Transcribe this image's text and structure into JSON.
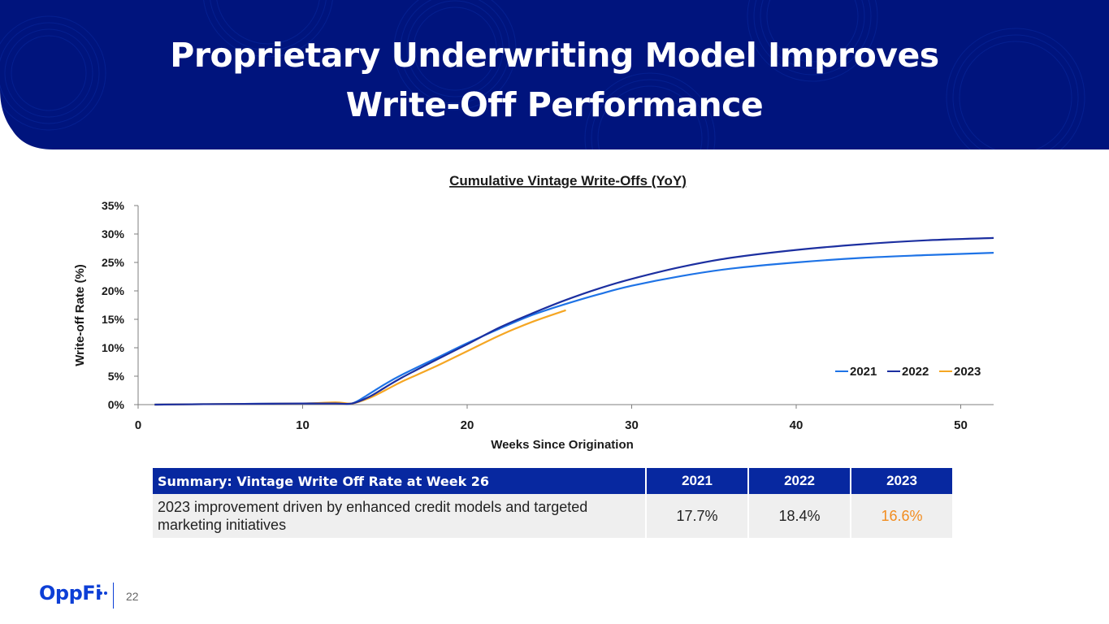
{
  "title": {
    "line1": "Proprietary Underwriting Model Improves",
    "line2": "Write-Off Performance"
  },
  "colors": {
    "banner": "#00147d",
    "series_2021": "#1e73e6",
    "series_2022": "#1c2fa0",
    "series_2023": "#f5a623",
    "table_header": "#0728a0",
    "highlight": "#f28c1e"
  },
  "chart_data": {
    "type": "line",
    "title": "Cumulative Vintage Write-Offs (YoY)",
    "xlabel": "Weeks Since Origination",
    "ylabel": "Write-off Rate (%)",
    "xlim": [
      0,
      52
    ],
    "ylim": [
      0,
      35
    ],
    "xticks": [
      0,
      10,
      20,
      30,
      40,
      50
    ],
    "yticks": [
      0,
      5,
      10,
      15,
      20,
      25,
      30,
      35
    ],
    "ytick_labels": [
      "0%",
      "5%",
      "10%",
      "15%",
      "20%",
      "25%",
      "30%",
      "35%"
    ],
    "legend_position": "bottom-right",
    "series": [
      {
        "name": "2021",
        "color": "#1e73e6",
        "x": [
          1,
          5,
          10,
          12,
          13,
          14,
          15,
          16,
          18,
          20,
          22,
          24,
          26,
          28,
          30,
          33,
          36,
          40,
          44,
          48,
          52
        ],
        "values": [
          0,
          0.1,
          0.2,
          0.3,
          0.2,
          1.8,
          3.6,
          5.2,
          8.0,
          10.8,
          13.4,
          15.8,
          17.7,
          19.4,
          20.9,
          22.6,
          23.9,
          25.0,
          25.8,
          26.3,
          26.7
        ]
      },
      {
        "name": "2022",
        "color": "#1c2fa0",
        "x": [
          1,
          5,
          10,
          12,
          13,
          14,
          15,
          16,
          18,
          20,
          22,
          24,
          26,
          28,
          30,
          33,
          36,
          40,
          44,
          48,
          52
        ],
        "values": [
          0,
          0.1,
          0.2,
          0.2,
          0.2,
          1.3,
          3.0,
          4.7,
          7.7,
          10.6,
          13.6,
          16.1,
          18.4,
          20.4,
          22.1,
          24.2,
          25.8,
          27.2,
          28.2,
          28.9,
          29.3
        ]
      },
      {
        "name": "2023",
        "color": "#f5a623",
        "x": [
          1,
          5,
          10,
          12,
          13,
          14,
          15,
          16,
          18,
          20,
          22,
          24,
          26
        ],
        "values": [
          0,
          0.1,
          0.2,
          0.4,
          0.2,
          1.1,
          2.5,
          4.0,
          6.6,
          9.4,
          12.2,
          14.6,
          16.6
        ]
      }
    ]
  },
  "table": {
    "header": "Summary: Vintage Write Off Rate at Week 26",
    "years": [
      "2021",
      "2022",
      "2023"
    ],
    "description": "2023 improvement driven by enhanced credit models and targeted marketing initiatives",
    "values": [
      "17.7%",
      "18.4%",
      "16.6%"
    ]
  },
  "footer": {
    "logo": "OppFi",
    "page": "22"
  }
}
